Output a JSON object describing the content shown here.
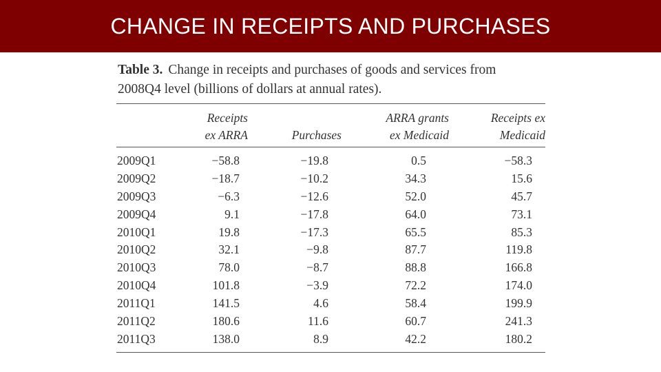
{
  "slide": {
    "title": "CHANGE IN RECEIPTS AND PURCHASES",
    "accent_color": "#7f0000"
  },
  "table": {
    "caption_label": "Table 3.",
    "caption_text": "Change in receipts and purchases of goods and services from",
    "caption_text_line2": "2008Q4 level (billions of dollars at annual rates).",
    "headers": {
      "col1_line1": "Receipts",
      "col1_line2": "ex ARRA",
      "col2": "Purchases",
      "col3_line1": "ARRA grants",
      "col3_line2": "ex Medicaid",
      "col4_line1": "Receipts ex",
      "col4_line2": "Medicaid"
    },
    "rows": [
      [
        "2009Q1",
        "−58.8",
        "−19.8",
        "0.5",
        "−58.3"
      ],
      [
        "2009Q2",
        "−18.7",
        "−10.2",
        "34.3",
        "15.6"
      ],
      [
        "2009Q3",
        "−6.3",
        "−12.6",
        "52.0",
        "45.7"
      ],
      [
        "2009Q4",
        "9.1",
        "−17.8",
        "64.0",
        "73.1"
      ],
      [
        "2010Q1",
        "19.8",
        "−17.3",
        "65.5",
        "85.3"
      ],
      [
        "2010Q2",
        "32.1",
        "−9.8",
        "87.7",
        "119.8"
      ],
      [
        "2010Q3",
        "78.0",
        "−8.7",
        "88.8",
        "166.8"
      ],
      [
        "2010Q4",
        "101.8",
        "−3.9",
        "72.2",
        "174.0"
      ],
      [
        "2011Q1",
        "141.5",
        "4.6",
        "58.4",
        "199.9"
      ],
      [
        "2011Q2",
        "180.6",
        "11.6",
        "60.7",
        "241.3"
      ],
      [
        "2011Q3",
        "138.0",
        "8.9",
        "42.2",
        "180.2"
      ]
    ]
  }
}
